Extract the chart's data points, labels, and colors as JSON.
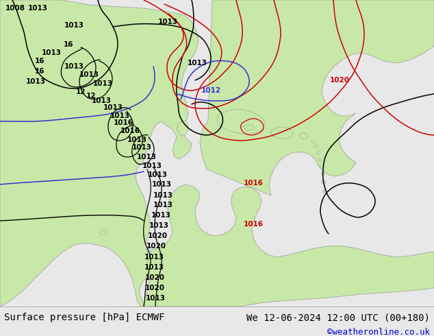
{
  "title_left": "Surface pressure [hPa] ECMWF",
  "title_right": "We 12-06-2024 12:00 UTC (00+180)",
  "copyright": "©weatheronline.co.uk",
  "land_color": "#c8e8a8",
  "ocean_color": "#d0d8e0",
  "footer_bg": "#e8e8e8",
  "footer_text_color": "#000000",
  "copyright_color": "#0000cc",
  "font_size_footer": 10,
  "isobar_black_color": "#000000",
  "isobar_red_color": "#cc0000",
  "isobar_blue_color": "#3333cc",
  "gray_coast_color": "#999999"
}
